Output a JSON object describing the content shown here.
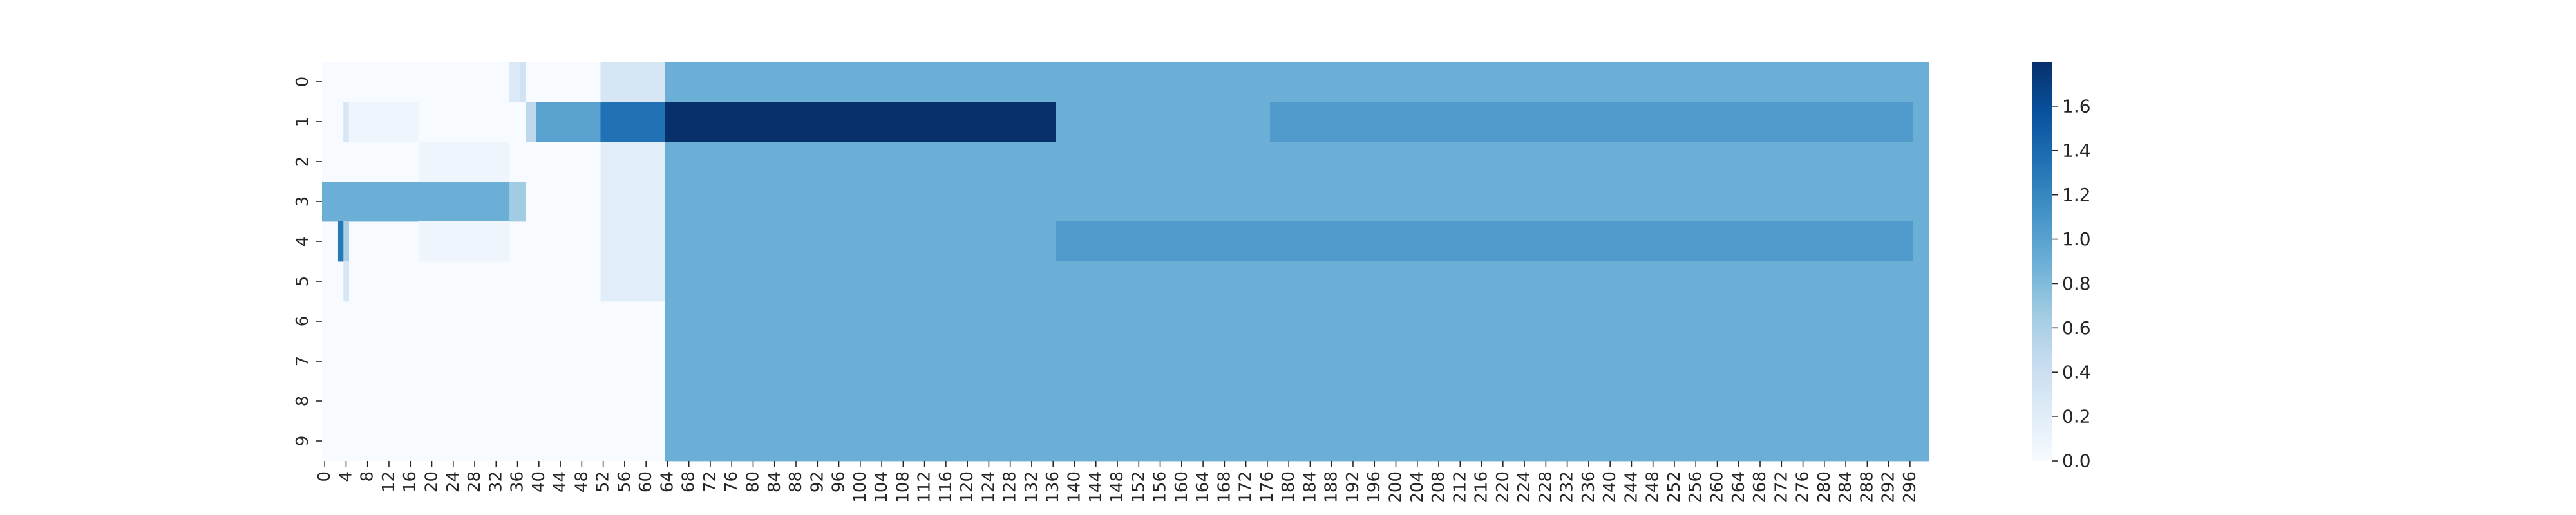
{
  "chart_data": {
    "type": "heatmap",
    "title": "",
    "xlabel": "",
    "ylabel": "",
    "x_range": [
      0,
      299
    ],
    "rows": [
      0,
      1,
      2,
      3,
      4,
      5,
      6,
      7,
      8,
      9
    ],
    "x_tick_labels": [
      "0",
      "4",
      "8",
      "12",
      "16",
      "20",
      "24",
      "28",
      "32",
      "36",
      "40",
      "44",
      "48",
      "52",
      "56",
      "60",
      "64",
      "68",
      "72",
      "76",
      "80",
      "84",
      "88",
      "92",
      "96",
      "100",
      "104",
      "108",
      "112",
      "116",
      "120",
      "124",
      "128",
      "132",
      "136",
      "140",
      "144",
      "148",
      "152",
      "156",
      "160",
      "164",
      "168",
      "172",
      "176",
      "180",
      "184",
      "188",
      "192",
      "196",
      "200",
      "204",
      "208",
      "212",
      "216",
      "220",
      "224",
      "228",
      "232",
      "236",
      "240",
      "244",
      "248",
      "252",
      "256",
      "260",
      "264",
      "268",
      "272",
      "276",
      "280",
      "284",
      "288",
      "292",
      "296"
    ],
    "y_tick_labels": [
      "0",
      "1",
      "2",
      "3",
      "4",
      "5",
      "6",
      "7",
      "8",
      "9"
    ],
    "colormap": "Blues",
    "colormap_stops": [
      "#f7fbff",
      "#deebf7",
      "#c6dbef",
      "#9ecae1",
      "#6baed6",
      "#4292c6",
      "#2171b5",
      "#08519c",
      "#08306b"
    ],
    "color_range": [
      0,
      1.8
    ],
    "colorbar_tick_labels": [
      "0.0",
      "0.2",
      "0.4",
      "0.6",
      "0.8",
      "1.0",
      "1.2",
      "1.4",
      "1.6"
    ],
    "background_value": 0.0,
    "cell_segments": [
      {
        "row": 0,
        "x_start": 35,
        "x_end": 37,
        "value": 0.25
      },
      {
        "row": 0,
        "x_start": 37,
        "x_end": 38,
        "value": 0.35
      },
      {
        "row": 0,
        "x_start": 52,
        "x_end": 64,
        "value": 0.3
      },
      {
        "row": 0,
        "x_start": 64,
        "x_end": 300,
        "value": 0.9
      },
      {
        "row": 1,
        "x_start": 4,
        "x_end": 5,
        "value": 0.3
      },
      {
        "row": 1,
        "x_start": 5,
        "x_end": 18,
        "value": 0.08
      },
      {
        "row": 1,
        "x_start": 38,
        "x_end": 40,
        "value": 0.5
      },
      {
        "row": 1,
        "x_start": 40,
        "x_end": 52,
        "value": 1.0
      },
      {
        "row": 1,
        "x_start": 52,
        "x_end": 64,
        "value": 1.35
      },
      {
        "row": 1,
        "x_start": 64,
        "x_end": 137,
        "value": 1.8
      },
      {
        "row": 1,
        "x_start": 137,
        "x_end": 177,
        "value": 0.9
      },
      {
        "row": 1,
        "x_start": 177,
        "x_end": 297,
        "value": 1.05
      },
      {
        "row": 1,
        "x_start": 297,
        "x_end": 300,
        "value": 0.9
      },
      {
        "row": 2,
        "x_start": 18,
        "x_end": 35,
        "value": 0.08
      },
      {
        "row": 2,
        "x_start": 52,
        "x_end": 64,
        "value": 0.2
      },
      {
        "row": 2,
        "x_start": 64,
        "x_end": 300,
        "value": 0.9
      },
      {
        "row": 3,
        "x_start": 0,
        "x_end": 35,
        "value": 0.9
      },
      {
        "row": 3,
        "x_start": 35,
        "x_end": 38,
        "value": 0.65
      },
      {
        "row": 3,
        "x_start": 52,
        "x_end": 64,
        "value": 0.2
      },
      {
        "row": 3,
        "x_start": 64,
        "x_end": 300,
        "value": 0.9
      },
      {
        "row": 4,
        "x_start": 3,
        "x_end": 4,
        "value": 1.3
      },
      {
        "row": 4,
        "x_start": 4,
        "x_end": 5,
        "value": 0.6
      },
      {
        "row": 4,
        "x_start": 18,
        "x_end": 35,
        "value": 0.08
      },
      {
        "row": 4,
        "x_start": 52,
        "x_end": 64,
        "value": 0.2
      },
      {
        "row": 4,
        "x_start": 64,
        "x_end": 137,
        "value": 0.9
      },
      {
        "row": 4,
        "x_start": 137,
        "x_end": 297,
        "value": 1.05
      },
      {
        "row": 4,
        "x_start": 297,
        "x_end": 300,
        "value": 0.9
      },
      {
        "row": 5,
        "x_start": 4,
        "x_end": 5,
        "value": 0.3
      },
      {
        "row": 5,
        "x_start": 52,
        "x_end": 64,
        "value": 0.2
      },
      {
        "row": 5,
        "x_start": 64,
        "x_end": 300,
        "value": 0.9
      },
      {
        "row": 6,
        "x_start": 64,
        "x_end": 300,
        "value": 0.9
      },
      {
        "row": 7,
        "x_start": 64,
        "x_end": 300,
        "value": 0.9
      },
      {
        "row": 8,
        "x_start": 64,
        "x_end": 300,
        "value": 0.9
      },
      {
        "row": 9,
        "x_start": 64,
        "x_end": 300,
        "value": 0.9
      }
    ]
  }
}
